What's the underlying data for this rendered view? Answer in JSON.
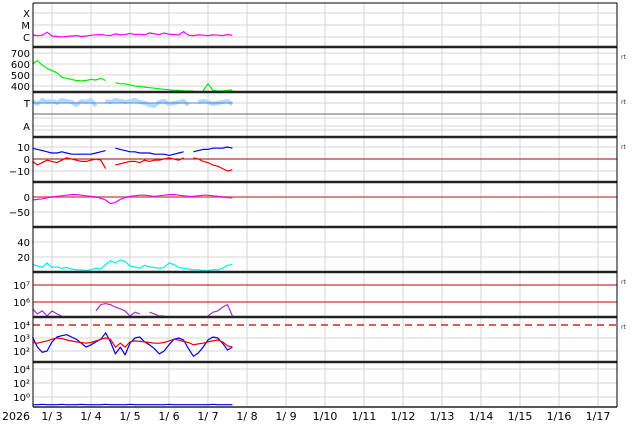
{
  "chart_data": {
    "type": "line",
    "x_tick_labels": [
      "2026",
      "1/ 3",
      "1/ 4",
      "1/ 5",
      "1/ 6",
      "1/ 7",
      "1/ 8",
      "1/ 9",
      "1/10",
      "1/11",
      "1/12",
      "1/13",
      "1/14",
      "1/15",
      "1/16",
      "1/17"
    ],
    "grid": true,
    "x": [
      "01-02T12",
      "01-02T15",
      "01-02T18",
      "01-02T21",
      "01-03T00",
      "01-03T03",
      "01-03T06",
      "01-03T09",
      "01-03T12",
      "01-03T15",
      "01-03T18",
      "01-03T21",
      "01-04T00",
      "01-04T03",
      "01-04T06",
      "01-04T09",
      "01-04T12",
      "01-04T15",
      "01-04T18",
      "01-04T21",
      "01-05T00",
      "01-05T03",
      "01-05T06",
      "01-05T09",
      "01-05T12",
      "01-05T15",
      "01-05T18",
      "01-05T21",
      "01-06T00",
      "01-06T03",
      "01-06T06",
      "01-06T09",
      "01-06T12",
      "01-06T15",
      "01-06T18",
      "01-06T21",
      "01-07T00",
      "01-07T03",
      "01-07T06",
      "01-07T09",
      "01-07T12",
      "01-07T15"
    ],
    "panels": [
      {
        "id": "xray",
        "scale": "log",
        "tick_labels": [
          "X",
          "M",
          "C"
        ],
        "color": "#ff00ff",
        "status": "",
        "values": [
          1.5e-06,
          1.3e-06,
          1.4e-06,
          2.5e-06,
          1.2e-06,
          1.1e-06,
          1e-06,
          1.1e-06,
          1.2e-06,
          1.3e-06,
          1.1e-06,
          1.2e-06,
          1.4e-06,
          1.5e-06,
          1.6e-06,
          1.4e-06,
          1.3e-06,
          1.8e-06,
          1.5e-06,
          1.6e-06,
          2e-06,
          1.6e-06,
          1.7e-06,
          1.5e-06,
          2.2e-06,
          1.8e-06,
          1.6e-06,
          2.1e-06,
          1.7e-06,
          1.6e-06,
          1.5e-06,
          2.8e-06,
          1.4e-06,
          1.3e-06,
          1.5e-06,
          1.4e-06,
          1.3e-06,
          1.5e-06,
          1.4e-06,
          1.3e-06,
          1.6e-06,
          1.4e-06
        ]
      },
      {
        "id": "speed",
        "scale": "linear",
        "tick_labels": [
          "700",
          "600",
          "500",
          "400"
        ],
        "color": "#00ee00",
        "status": "rt",
        "values": [
          600,
          630,
          590,
          560,
          540,
          520,
          480,
          470,
          460,
          450,
          445,
          450,
          460,
          455,
          470,
          450,
          null,
          430,
          420,
          420,
          410,
          400,
          395,
          390,
          385,
          380,
          375,
          370,
          365,
          360,
          360,
          355,
          350,
          350,
          null,
          350,
          420,
          360,
          355,
          355,
          360,
          365
        ]
      },
      {
        "id": "mag-angle",
        "scale": "category",
        "tick_labels": [
          "T",
          "A"
        ],
        "color": "#aaddff",
        "line_color": "#6677ee",
        "status": "rt",
        "values": [
          0.2,
          -0.1,
          0.3,
          0.1,
          0.2,
          0.0,
          0.3,
          0.2,
          0.1,
          -0.2,
          0.2,
          0.1,
          0.3,
          -0.3,
          null,
          0.2,
          0.1,
          0.3,
          0.2,
          0.1,
          0.2,
          0.3,
          0.1,
          0.0,
          -0.2,
          -0.3,
          0.1,
          0.2,
          -0.1,
          0.0,
          0.1,
          0.2,
          -0.2,
          null,
          0.1,
          0.2,
          0.1,
          -0.1,
          0.0,
          0.1,
          0.2,
          -0.1
        ]
      },
      {
        "id": "imf",
        "scale": "linear",
        "tick_labels": [
          "10",
          "0",
          "−10"
        ],
        "status": "rt",
        "zero_line_color": "#aa0000",
        "series": [
          {
            "color": "#0000ee",
            "values": [
              9,
              8,
              7,
              6,
              5,
              5,
              6,
              5,
              4,
              4,
              4,
              4,
              4,
              5,
              6,
              7,
              null,
              9,
              8,
              7,
              6,
              6,
              5,
              5,
              5,
              4,
              4,
              4,
              3,
              4,
              5,
              6,
              null,
              6,
              7,
              8,
              8,
              9,
              9,
              9,
              10,
              9
            ]
          },
          {
            "color": "#ee0000",
            "values": [
              -2,
              -5,
              -3,
              -1,
              -2,
              -3,
              -1,
              1,
              0,
              -1,
              -2,
              -2,
              -1,
              0,
              -1,
              -8,
              null,
              -5,
              -4,
              -3,
              -2,
              -2,
              -3,
              -1,
              -2,
              -1,
              -1,
              0,
              1,
              0,
              -1,
              1,
              null,
              1,
              0,
              -2,
              -3,
              -5,
              -6,
              -8,
              -10,
              -9
            ]
          }
        ]
      },
      {
        "id": "dst",
        "scale": "linear",
        "tick_labels": [
          "0",
          "−50"
        ],
        "color": "#ee00ee",
        "status": "",
        "zero_line_color": "#d06060",
        "values": [
          -10,
          -8,
          -6,
          -3,
          0,
          2,
          4,
          6,
          8,
          8,
          6,
          4,
          2,
          0,
          -4,
          -10,
          -22,
          -18,
          -8,
          -2,
          2,
          4,
          6,
          6,
          4,
          2,
          4,
          6,
          8,
          8,
          6,
          4,
          2,
          2,
          4,
          6,
          6,
          4,
          2,
          0,
          -2,
          -3
        ]
      },
      {
        "id": "density",
        "scale": "linear",
        "tick_labels": [
          "40",
          "20"
        ],
        "color": "#00eeee",
        "status": "",
        "values": [
          10,
          8,
          6,
          12,
          6,
          7,
          5,
          6,
          4,
          3,
          3,
          2,
          3,
          5,
          4,
          10,
          15,
          12,
          16,
          14,
          8,
          7,
          5,
          9,
          7,
          6,
          5,
          6,
          12,
          10,
          6,
          5,
          4,
          3,
          3,
          2,
          2,
          3,
          3,
          5,
          9,
          10
        ]
      },
      {
        "id": "electron-flux",
        "scale": "log",
        "tick_labels": [
          "10⁷",
          "10⁶"
        ],
        "color": "#9933cc",
        "status": "rt",
        "threshold_color": "#cc0000",
        "values": [
          400000.0,
          200000.0,
          300000.0,
          100000.0,
          300000.0,
          200000.0,
          100000.0,
          null,
          null,
          null,
          null,
          null,
          null,
          300000.0,
          700000.0,
          800000.0,
          700000.0,
          500000.0,
          400000.0,
          300000.0,
          150000.0,
          250000.0,
          200000.0,
          null,
          250000.0,
          200000.0,
          150000.0,
          120000.0,
          null,
          null,
          null,
          null,
          null,
          null,
          null,
          null,
          150000.0,
          250000.0,
          300000.0,
          500000.0,
          700000.0,
          100000.0
        ]
      },
      {
        "id": "proton-flux",
        "scale": "log",
        "tick_labels": [
          "10⁴",
          "10³",
          "10²"
        ],
        "status": "rt",
        "threshold_color": "#dd2222",
        "series": [
          {
            "color": "#0000ee",
            "values": [
              1200,
              200,
              80,
              100,
              500,
              1200,
              1500,
              1800,
              1200,
              800,
              400,
              200,
              300,
              500,
              800,
              2500,
              500,
              60,
              200,
              50,
              400,
              1000,
              1200,
              500,
              300,
              150,
              60,
              100,
              300,
              800,
              1000,
              700,
              150,
              40,
              70,
              200,
              700,
              1200,
              1000,
              400,
              120,
              200
            ]
          },
          {
            "color": "#ee0000",
            "values": [
              450,
              400,
              500,
              600,
              800,
              1000,
              900,
              700,
              600,
              500,
              450,
              400,
              450,
              600,
              800,
              1000,
              800,
              200,
              400,
              200,
              500,
              600,
              550,
              500,
              450,
              400,
              400,
              450,
              600,
              800,
              700,
              550,
              450,
              300,
              350,
              400,
              500,
              600,
              700,
              500,
              250,
              200
            ]
          }
        ]
      },
      {
        "id": "high-energy",
        "scale": "log",
        "tick_labels": [
          "10⁴",
          "10²",
          "10⁰"
        ],
        "color": "#0000ee",
        "status": "",
        "values": [
          0.08,
          0.08,
          0.09,
          0.08,
          0.08,
          0.08,
          0.09,
          0.08,
          0.08,
          0.08,
          0.09,
          0.08,
          0.08,
          0.08,
          0.08,
          0.09,
          0.08,
          0.08,
          0.08,
          0.08,
          0.09,
          0.08,
          0.08,
          0.08,
          0.08,
          0.08,
          0.08,
          0.08,
          0.09,
          0.08,
          0.08,
          0.08,
          0.08,
          0.08,
          0.08,
          0.08,
          0.08,
          0.09,
          0.08,
          0.08,
          0.08,
          0.08
        ]
      }
    ]
  }
}
